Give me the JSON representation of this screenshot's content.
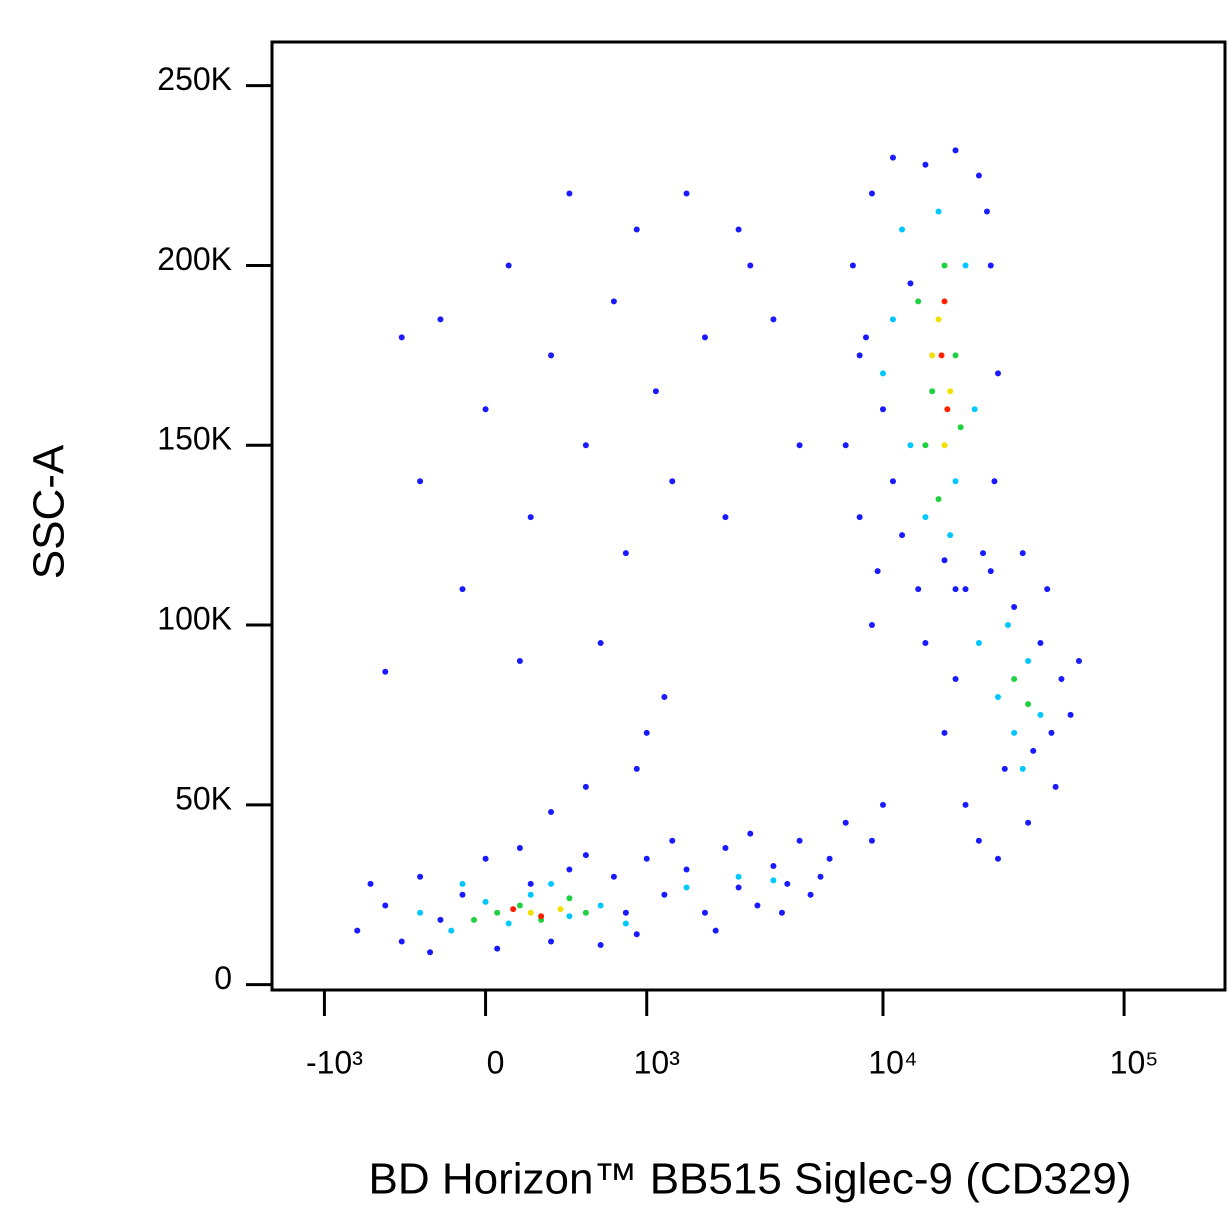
{
  "chart_data": {
    "type": "scatter",
    "x_label": "BD Horizon™ BB515 Siglec-9 (CD329)",
    "y_label": "SSC-A",
    "xscale": "biexponential",
    "xlim": [
      -1700,
      262144
    ],
    "ylim": [
      -1500,
      262144
    ],
    "xticks": [
      {
        "value": -1000,
        "label": "-10³"
      },
      0,
      {
        "value": 1000,
        "label": "10³"
      },
      {
        "value": 10000,
        "label": "10⁴"
      },
      {
        "value": 100000,
        "label": "10⁵"
      }
    ],
    "yticks": [
      {
        "value": 0,
        "label": "0"
      },
      {
        "value": 50000,
        "label": "50K"
      },
      {
        "value": 100000,
        "label": "100K"
      },
      {
        "value": 150000,
        "label": "150K"
      },
      {
        "value": 200000,
        "label": "200K"
      },
      {
        "value": 250000,
        "label": "250K"
      }
    ],
    "series": [
      {
        "color": "#1a1aff",
        "x": [
          -700,
          -500,
          -400,
          -300,
          -200,
          -100,
          0,
          50,
          150,
          300,
          400,
          600,
          700,
          900,
          1000,
          -600,
          -250,
          200,
          500,
          800,
          1200,
          1500,
          1800,
          2200,
          2500,
          3000,
          3500,
          4000,
          4500,
          5000,
          5500,
          6000,
          1300,
          2000,
          2800,
          3800,
          7000,
          9000,
          10000,
          -300,
          -200,
          -100,
          0,
          100,
          200,
          300,
          400,
          500,
          600,
          700,
          800,
          900,
          1100,
          1300,
          1500,
          1800,
          2200,
          2800,
          3500,
          1000,
          1200,
          -500,
          150,
          500,
          300,
          900,
          2500,
          4500,
          -400,
          7000,
          7500,
          8000,
          8500,
          9000,
          9500,
          10000,
          11000,
          12000,
          13000,
          14000,
          15000,
          20000,
          25000,
          28000,
          30000,
          29000,
          26000,
          22000,
          9000,
          8000,
          11000,
          18000,
          27000,
          15000,
          18000,
          20000,
          22000,
          25000,
          28000,
          32000,
          35000,
          40000,
          45000,
          50000,
          55000,
          60000,
          65000,
          48000,
          30000,
          42000,
          20000,
          38000,
          52000
        ],
        "values": [
          15000,
          22000,
          12000,
          30000,
          18000,
          25000,
          35000,
          10000,
          38000,
          12000,
          32000,
          11000,
          30000,
          14000,
          35000,
          28000,
          9000,
          28000,
          36000,
          20000,
          25000,
          32000,
          20000,
          38000,
          27000,
          22000,
          33000,
          28000,
          40000,
          25000,
          30000,
          35000,
          40000,
          15000,
          42000,
          20000,
          45000,
          40000,
          50000,
          140000,
          185000,
          110000,
          160000,
          200000,
          130000,
          175000,
          220000,
          150000,
          95000,
          190000,
          120000,
          210000,
          165000,
          140000,
          220000,
          180000,
          130000,
          200000,
          185000,
          70000,
          80000,
          87000,
          90000,
          55000,
          48000,
          60000,
          210000,
          150000,
          180000,
          150000,
          200000,
          130000,
          180000,
          220000,
          115000,
          160000,
          230000,
          125000,
          195000,
          110000,
          228000,
          232000,
          225000,
          200000,
          170000,
          140000,
          120000,
          110000,
          100000,
          175000,
          140000,
          118000,
          215000,
          95000,
          70000,
          110000,
          50000,
          40000,
          115000,
          60000,
          105000,
          45000,
          95000,
          70000,
          85000,
          75000,
          90000,
          110000,
          35000,
          65000,
          85000,
          120000,
          55000
        ]
      },
      {
        "color": "#00c8ff",
        "x": [
          -300,
          -150,
          0,
          100,
          200,
          400,
          600,
          800,
          -100,
          300,
          1500,
          2500,
          3500,
          10000,
          12000,
          13000,
          15000,
          17000,
          20000,
          22000,
          24000,
          11000,
          19000,
          25000,
          30000,
          35000,
          40000,
          45000,
          33000,
          38000
        ],
        "values": [
          20000,
          15000,
          23000,
          17000,
          25000,
          19000,
          22000,
          17000,
          28000,
          28000,
          27000,
          30000,
          29000,
          170000,
          210000,
          150000,
          130000,
          215000,
          140000,
          200000,
          160000,
          185000,
          125000,
          95000,
          80000,
          70000,
          90000,
          75000,
          100000,
          60000
        ]
      },
      {
        "color": "#20d040",
        "x": [
          50,
          150,
          250,
          400,
          500,
          -50,
          14000,
          16000,
          18000,
          20000,
          15000,
          21000,
          17000,
          35000,
          40000
        ],
        "values": [
          20000,
          22000,
          18000,
          24000,
          20000,
          18000,
          190000,
          165000,
          200000,
          175000,
          150000,
          155000,
          135000,
          85000,
          78000
        ]
      },
      {
        "color": "#f0e000",
        "x": [
          200,
          350,
          17000,
          19000,
          16000,
          18000
        ],
        "values": [
          20000,
          21000,
          185000,
          165000,
          175000,
          150000
        ]
      },
      {
        "color": "#ff2000",
        "x": [
          250,
          120,
          17500,
          18500,
          18000
        ],
        "values": [
          19000,
          21000,
          175000,
          160000,
          190000
        ]
      }
    ]
  }
}
